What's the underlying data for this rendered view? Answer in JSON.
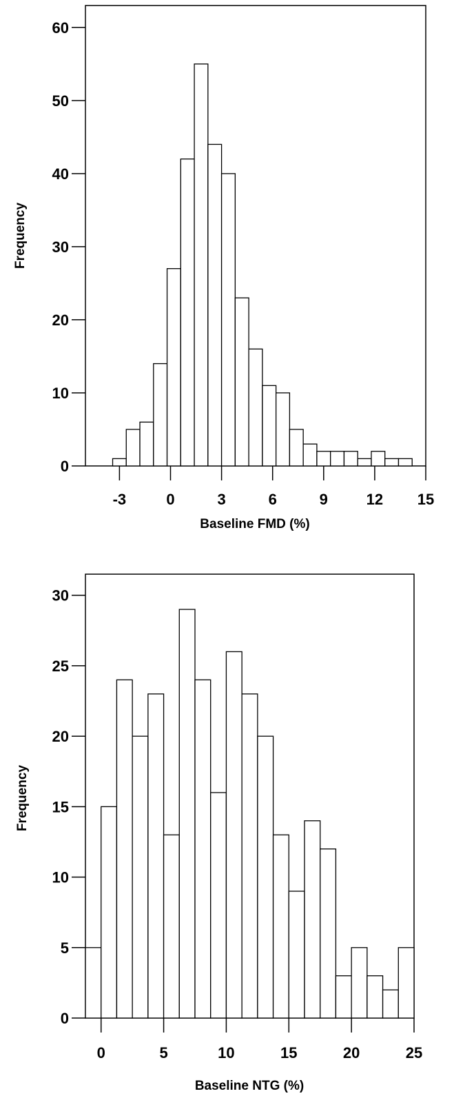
{
  "chart_data": [
    {
      "type": "bar",
      "title": "",
      "xlabel": "Baseline FMD (%)",
      "ylabel": "Frequency",
      "xlim": [
        -5,
        15
      ],
      "ylim": [
        0,
        63
      ],
      "xticks": [
        -3,
        0,
        3,
        6,
        9,
        12,
        15
      ],
      "yticks": [
        0,
        10,
        20,
        30,
        40,
        50,
        60
      ],
      "bin_width": 0.8,
      "bin_start": -3.4,
      "values": [
        1,
        5,
        6,
        14,
        27,
        42,
        55,
        44,
        40,
        23,
        16,
        11,
        10,
        5,
        3,
        2,
        2,
        2,
        1,
        2,
        1,
        1
      ],
      "grid": false
    },
    {
      "type": "bar",
      "title": "",
      "xlabel": "Baseline NTG (%)",
      "ylabel": "Frequency",
      "xlim": [
        -1.25,
        25
      ],
      "ylim": [
        0,
        31.5
      ],
      "xticks": [
        0,
        5,
        10,
        15,
        20,
        25
      ],
      "yticks": [
        0,
        5,
        10,
        15,
        20,
        25,
        30
      ],
      "bin_width": 1.25,
      "bin_start": -1.25,
      "values": [
        5,
        15,
        24,
        20,
        23,
        13,
        29,
        24,
        16,
        26,
        23,
        20,
        13,
        9,
        14,
        12,
        3,
        5,
        3,
        2,
        5
      ],
      "grid": false
    }
  ]
}
